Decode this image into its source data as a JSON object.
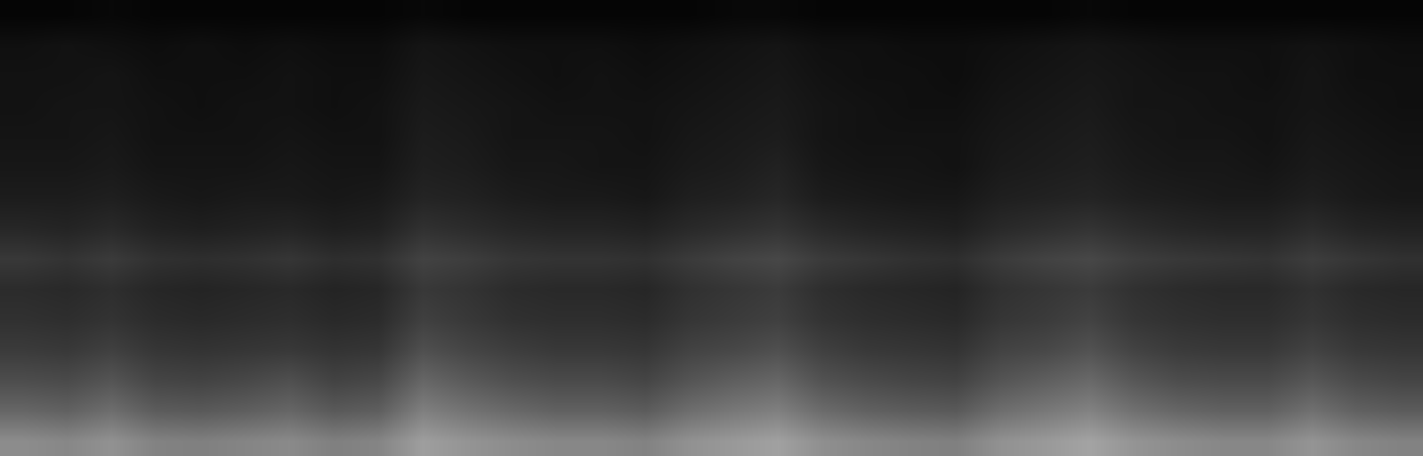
{
  "chart_data": {
    "type": "heatmap",
    "tick_labels": false,
    "grid": false,
    "zlim": [
      0,
      100
    ],
    "cells": [
      [
        2,
        2,
        3,
        2,
        2,
        2,
        2,
        2,
        2,
        3,
        2,
        2,
        2,
        2,
        2,
        2,
        3,
        3,
        2,
        2,
        2,
        2,
        2,
        2,
        3,
        2,
        2,
        2,
        2,
        2,
        2,
        2
      ],
      [
        6,
        7,
        6,
        5,
        6,
        5,
        6,
        5,
        5,
        8,
        7,
        6,
        6,
        6,
        5,
        6,
        7,
        8,
        6,
        6,
        5,
        5,
        6,
        7,
        8,
        7,
        6,
        6,
        6,
        7,
        6,
        5
      ],
      [
        7,
        7,
        8,
        6,
        6,
        6,
        7,
        6,
        6,
        9,
        8,
        7,
        6,
        7,
        6,
        7,
        8,
        9,
        7,
        6,
        6,
        5,
        7,
        8,
        9,
        8,
        7,
        7,
        6,
        8,
        6,
        6
      ],
      [
        7,
        8,
        8,
        7,
        6,
        7,
        7,
        6,
        7,
        10,
        9,
        8,
        7,
        7,
        7,
        8,
        9,
        10,
        8,
        7,
        6,
        6,
        8,
        9,
        10,
        8,
        8,
        7,
        7,
        8,
        7,
        6
      ],
      [
        8,
        8,
        9,
        7,
        7,
        7,
        8,
        7,
        7,
        11,
        10,
        8,
        8,
        8,
        7,
        9,
        10,
        11,
        8,
        7,
        7,
        7,
        9,
        10,
        11,
        9,
        8,
        8,
        7,
        9,
        8,
        7
      ],
      [
        9,
        9,
        10,
        8,
        8,
        8,
        9,
        8,
        8,
        12,
        11,
        9,
        9,
        8,
        8,
        10,
        11,
        13,
        9,
        8,
        8,
        7,
        10,
        11,
        12,
        10,
        9,
        9,
        8,
        10,
        9,
        8
      ],
      [
        11,
        11,
        12,
        10,
        9,
        10,
        10,
        9,
        10,
        14,
        13,
        11,
        10,
        10,
        9,
        12,
        13,
        15,
        11,
        10,
        9,
        9,
        12,
        13,
        14,
        12,
        11,
        10,
        10,
        12,
        10,
        9
      ],
      [
        15,
        14,
        16,
        13,
        12,
        13,
        14,
        12,
        13,
        19,
        17,
        15,
        14,
        14,
        13,
        16,
        18,
        20,
        16,
        14,
        13,
        12,
        16,
        18,
        20,
        17,
        15,
        14,
        14,
        17,
        14,
        13
      ],
      [
        22,
        20,
        23,
        19,
        18,
        19,
        21,
        18,
        19,
        26,
        24,
        21,
        20,
        20,
        19,
        23,
        26,
        28,
        23,
        21,
        19,
        18,
        23,
        26,
        28,
        24,
        22,
        21,
        20,
        24,
        21,
        19
      ],
      [
        17,
        16,
        18,
        15,
        14,
        15,
        16,
        14,
        15,
        22,
        20,
        17,
        16,
        16,
        15,
        19,
        21,
        23,
        18,
        16,
        15,
        14,
        19,
        21,
        23,
        19,
        17,
        16,
        16,
        19,
        16,
        15
      ],
      [
        19,
        18,
        20,
        17,
        16,
        17,
        18,
        16,
        17,
        25,
        22,
        19,
        18,
        18,
        17,
        21,
        23,
        25,
        20,
        18,
        17,
        16,
        21,
        23,
        26,
        21,
        19,
        18,
        18,
        21,
        18,
        17
      ],
      [
        23,
        22,
        25,
        21,
        20,
        21,
        22,
        20,
        21,
        31,
        27,
        24,
        22,
        22,
        21,
        26,
        28,
        31,
        25,
        22,
        21,
        20,
        26,
        28,
        32,
        26,
        23,
        22,
        22,
        26,
        22,
        21
      ],
      [
        30,
        29,
        33,
        27,
        26,
        28,
        31,
        26,
        28,
        40,
        35,
        31,
        29,
        29,
        27,
        33,
        37,
        40,
        32,
        29,
        27,
        26,
        33,
        37,
        41,
        34,
        30,
        29,
        29,
        34,
        29,
        27
      ],
      [
        40,
        38,
        43,
        36,
        35,
        37,
        40,
        35,
        37,
        50,
        45,
        41,
        38,
        38,
        36,
        43,
        47,
        50,
        42,
        38,
        36,
        35,
        43,
        47,
        51,
        44,
        40,
        38,
        38,
        44,
        38,
        36
      ],
      [
        55,
        53,
        57,
        51,
        50,
        52,
        54,
        50,
        52,
        62,
        58,
        55,
        53,
        53,
        51,
        57,
        60,
        63,
        56,
        53,
        51,
        50,
        57,
        60,
        64,
        58,
        55,
        53,
        53,
        58,
        53,
        51
      ]
    ]
  }
}
